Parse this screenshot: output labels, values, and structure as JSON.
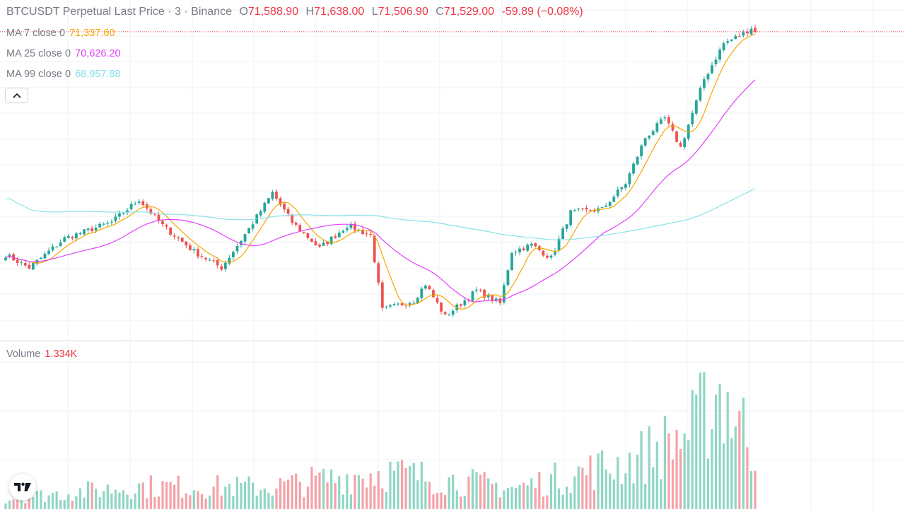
{
  "header": {
    "symbol": "BTCUSDT Perpetual Last Price",
    "sep1": "·",
    "interval": "3",
    "sep2": "·",
    "exchange": "Binance",
    "o_label": "O",
    "o_value": "71,588.90",
    "h_label": "H",
    "h_value": "71,638.00",
    "l_label": "L",
    "l_value": "71,506.90",
    "c_label": "C",
    "c_value": "71,529.00",
    "change": "-59.89 (−0.08%)"
  },
  "indicators": [
    {
      "label": "MA 7 close 0",
      "value": "71,337.60",
      "color": "#f7a600"
    },
    {
      "label": "MA 25 close 0",
      "value": "70,626.20",
      "color": "#e040fb"
    },
    {
      "label": "MA 99 close 0",
      "value": "68,957.88",
      "color": "#80deea"
    }
  ],
  "volume_legend": {
    "label": "Volume",
    "value": "1.334K"
  },
  "colors": {
    "up": "#26a69a",
    "down": "#ef5350",
    "grid": "#f0f3fa",
    "last_price_line": "#f23645"
  },
  "icons": {
    "collapse": "chevron-up-icon",
    "logo": "tradingview-logo-icon"
  },
  "chart_data": {
    "type": "candlestick",
    "symbol": "BTCUSDT Perpetual",
    "interval": "3",
    "price_range": [
      66800,
      71800
    ],
    "last_close": 71529.0,
    "anchors": [
      {
        "bar": 0,
        "price": 68100
      },
      {
        "bar": 6,
        "price": 67900
      },
      {
        "bar": 15,
        "price": 68350
      },
      {
        "bar": 27,
        "price": 68600
      },
      {
        "bar": 34,
        "price": 68950
      },
      {
        "bar": 40,
        "price": 68550
      },
      {
        "bar": 48,
        "price": 68150
      },
      {
        "bar": 55,
        "price": 67900
      },
      {
        "bar": 62,
        "price": 68500
      },
      {
        "bar": 68,
        "price": 69050
      },
      {
        "bar": 73,
        "price": 68600
      },
      {
        "bar": 80,
        "price": 68200
      },
      {
        "bar": 87,
        "price": 68550
      },
      {
        "bar": 93,
        "price": 68400
      },
      {
        "bar": 96,
        "price": 67250
      },
      {
        "bar": 104,
        "price": 67400
      },
      {
        "bar": 107,
        "price": 67650
      },
      {
        "bar": 112,
        "price": 67150
      },
      {
        "bar": 120,
        "price": 67550
      },
      {
        "bar": 126,
        "price": 67350
      },
      {
        "bar": 129,
        "price": 68150
      },
      {
        "bar": 134,
        "price": 68250
      },
      {
        "bar": 139,
        "price": 68050
      },
      {
        "bar": 144,
        "price": 68750
      },
      {
        "bar": 152,
        "price": 68800
      },
      {
        "bar": 158,
        "price": 69200
      },
      {
        "bar": 163,
        "price": 69900
      },
      {
        "bar": 168,
        "price": 70200
      },
      {
        "bar": 172,
        "price": 69750
      },
      {
        "bar": 178,
        "price": 70800
      },
      {
        "bar": 183,
        "price": 71350
      },
      {
        "bar": 188,
        "price": 71500
      },
      {
        "bar": 191,
        "price": 71640
      }
    ],
    "volume_range": [
      0,
      1400
    ],
    "volume_levels": [
      {
        "bar": 0,
        "v": 120
      },
      {
        "bar": 33,
        "v": 260
      },
      {
        "bar": 67,
        "v": 250
      },
      {
        "bar": 96,
        "v": 430
      },
      {
        "bar": 130,
        "v": 240
      },
      {
        "bar": 160,
        "v": 560
      },
      {
        "bar": 175,
        "v": 900
      },
      {
        "bar": 182,
        "v": 1380
      },
      {
        "bar": 191,
        "v": 700
      }
    ],
    "moving_averages": [
      {
        "name": "MA 7",
        "period": 7,
        "color": "#f7a600",
        "value": 71337.6
      },
      {
        "name": "MA 25",
        "period": 25,
        "color": "#e040fb",
        "value": 70626.2
      },
      {
        "name": "MA 99",
        "period": 99,
        "color": "#80deea",
        "value": 68957.88
      }
    ],
    "grid": true
  }
}
